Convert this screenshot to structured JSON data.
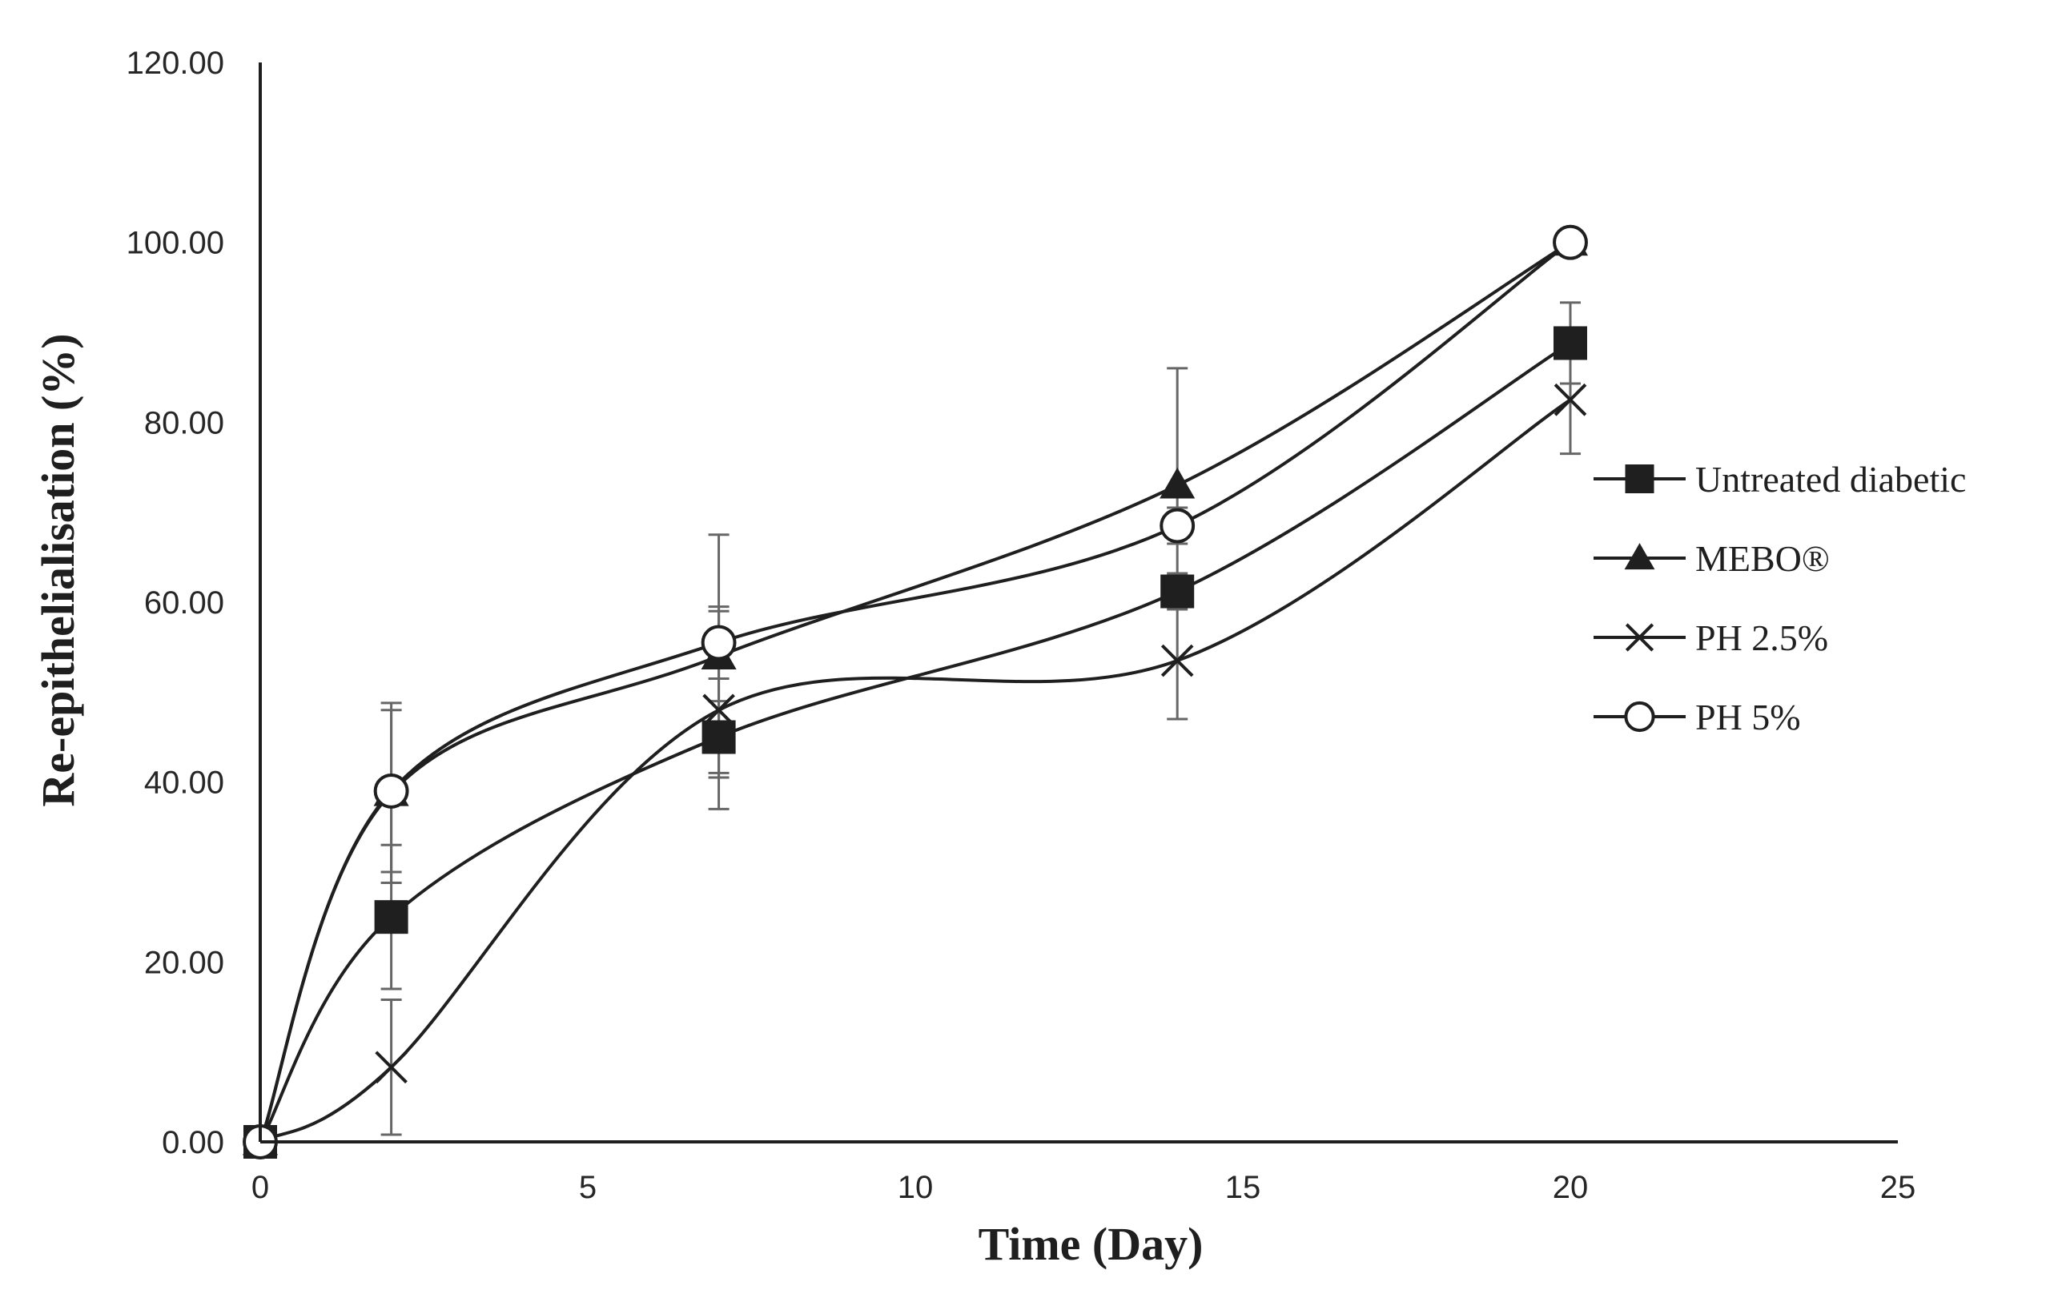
{
  "chart_data": {
    "type": "line",
    "title": "",
    "xlabel": "Time (Day)",
    "ylabel": "Re-epithelialisation (%)",
    "xlim": [
      0,
      25
    ],
    "ylim": [
      0,
      120
    ],
    "x_ticks": [
      0,
      5,
      10,
      15,
      20,
      25
    ],
    "x_tick_labels": [
      "0",
      "5",
      "10",
      "15",
      "20",
      "25"
    ],
    "y_ticks": [
      0,
      20,
      40,
      60,
      80,
      100,
      120
    ],
    "y_tick_labels": [
      "0.00",
      "20.00",
      "40.00",
      "60.00",
      "80.00",
      "100.00",
      "120.00"
    ],
    "grid": false,
    "legend_position": "right",
    "series": [
      {
        "name": "Untreated diabetic",
        "marker": "square",
        "x": [
          0,
          2,
          7,
          14,
          20
        ],
        "values": [
          0,
          25,
          45,
          61.2,
          88.8
        ],
        "error": [
          0,
          8,
          4,
          2,
          4.5
        ]
      },
      {
        "name": "MEBO®",
        "marker": "triangle",
        "x": [
          0,
          2,
          7,
          14,
          20
        ],
        "values": [
          0,
          38.8,
          54,
          73,
          100
        ],
        "error": [
          0,
          10,
          13.5,
          13,
          0
        ]
      },
      {
        "name": "PH 2.5%",
        "marker": "x",
        "x": [
          0,
          2,
          7,
          14,
          20
        ],
        "values": [
          0,
          8.3,
          48,
          53.5,
          82.5
        ],
        "error": [
          0,
          7.5,
          11,
          6.5,
          6
        ]
      },
      {
        "name": "PH 5%",
        "marker": "circle",
        "x": [
          0,
          2,
          7,
          14,
          20
        ],
        "values": [
          0,
          39,
          55.5,
          68.5,
          100
        ],
        "error": [
          0,
          9,
          4,
          2,
          0
        ]
      }
    ]
  }
}
